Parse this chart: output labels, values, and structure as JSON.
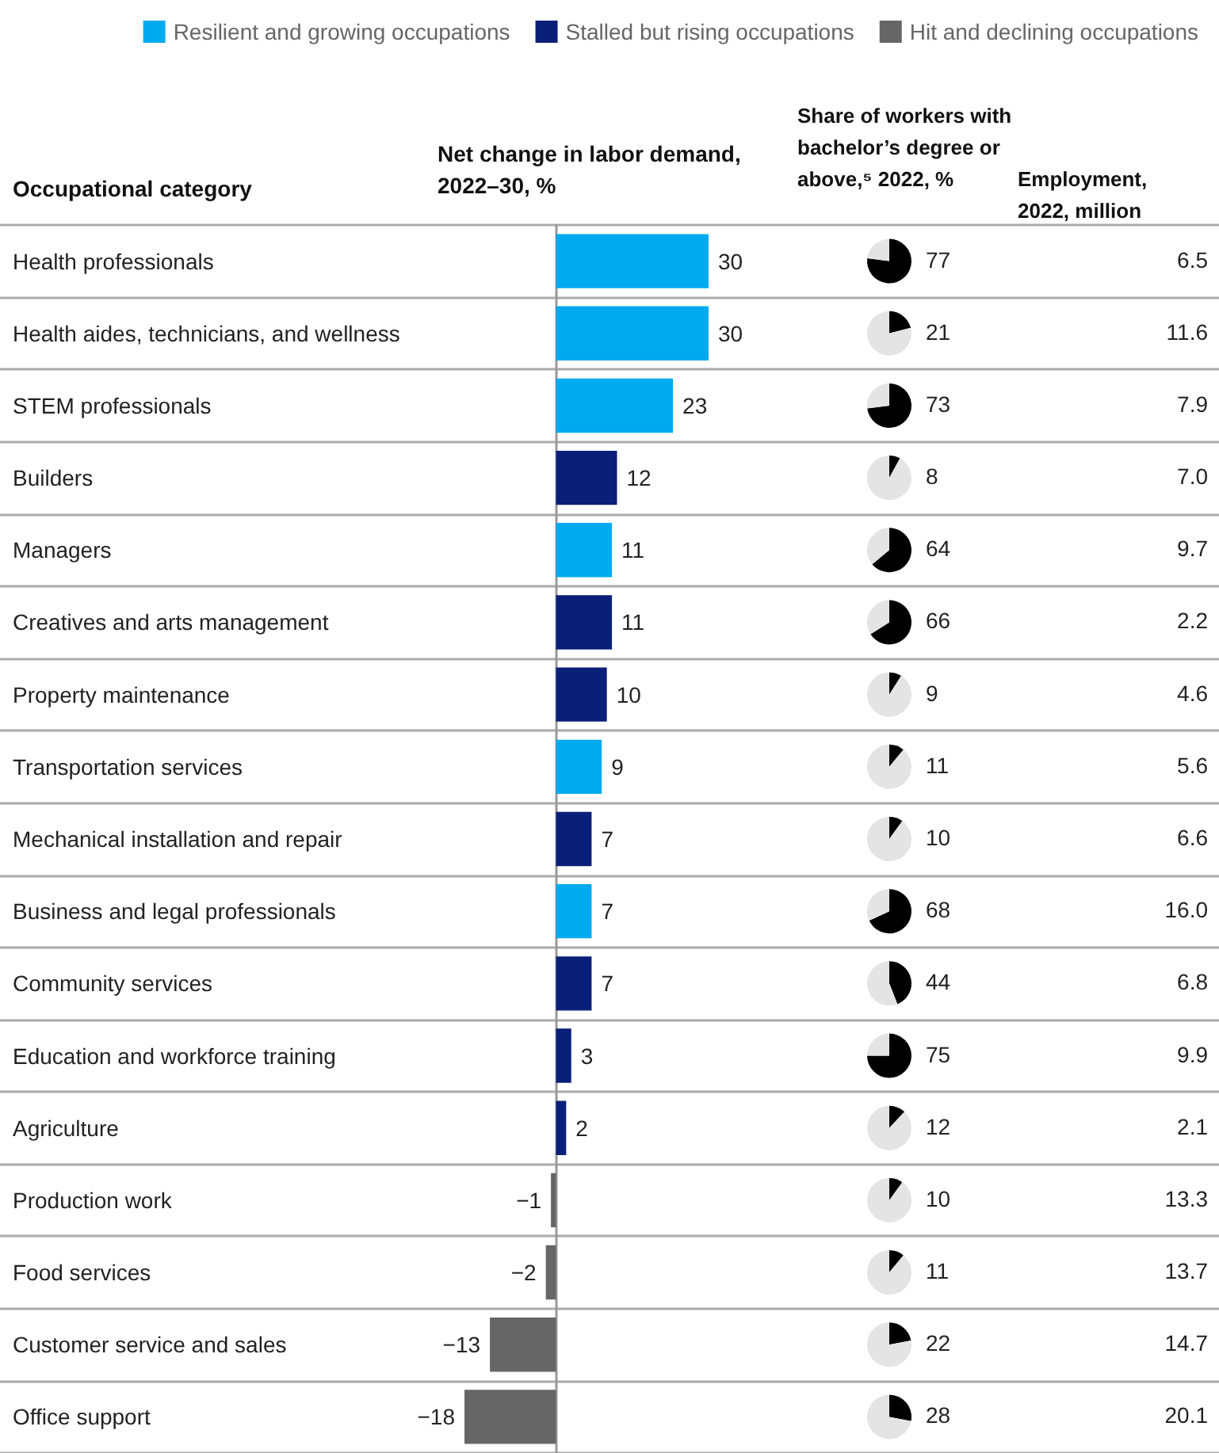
{
  "chart_data": [
    {
      "type": "bar",
      "orientation": "horizontal",
      "title": "Net change in labor demand, 2022–30, %",
      "ylabel": "Occupational category",
      "categories": [
        "Health professionals",
        "Health aides, technicians, and wellness",
        "STEM professionals",
        "Builders",
        "Managers",
        "Creatives and arts management",
        "Property maintenance",
        "Transportation services",
        "Mechanical installation and repair",
        "Business and legal professionals",
        "Community services",
        "Education and workforce training",
        "Agriculture",
        "Production work",
        "Food services",
        "Customer service and sales",
        "Office support"
      ],
      "series": [
        {
          "name": "Resilient and growing occupations",
          "color": "#00aaf0",
          "values": [
            30,
            30,
            23,
            null,
            11,
            null,
            null,
            9,
            null,
            7,
            null,
            null,
            null,
            null,
            null,
            null,
            null
          ]
        },
        {
          "name": "Stalled but rising occupations",
          "color": "#0a1f78",
          "values": [
            null,
            null,
            null,
            12,
            null,
            11,
            10,
            null,
            7,
            null,
            7,
            3,
            2,
            null,
            null,
            null,
            null
          ]
        },
        {
          "name": "Hit and declining occupations",
          "color": "#666666",
          "values": [
            null,
            null,
            null,
            null,
            null,
            null,
            null,
            null,
            null,
            null,
            null,
            null,
            null,
            -1,
            -2,
            -13,
            -18
          ]
        }
      ],
      "xlim": [
        -18,
        30
      ],
      "tick_labels": "y",
      "data_labels": true,
      "legend": "top right",
      "grid": "y"
    },
    {
      "type": "other",
      "title": "Share of workers with bachelor’s degree or above,⁵ 2022, %",
      "values": [
        77,
        21,
        73,
        8,
        64,
        66,
        9,
        11,
        10,
        68,
        44,
        75,
        12,
        10,
        11,
        22,
        28
      ],
      "color": "#000000",
      "data_labels": true
    },
    {
      "type": "other",
      "title": "Employment, 2022, million",
      "values": [
        6.5,
        11.6,
        7.9,
        7.0,
        9.7,
        2.2,
        4.6,
        5.6,
        6.6,
        16.0,
        6.8,
        9.9,
        2.1,
        13.3,
        13.7,
        14.7,
        20.1
      ],
      "value_labels": [
        "6.5",
        "11.6",
        "7.9",
        "7.0",
        "9.7",
        "2.2",
        "4.6",
        "5.6",
        "6.6",
        "16.0",
        "6.8",
        "9.9",
        "2.1",
        "13.3",
        "13.7",
        "14.7",
        "20.1"
      ]
    }
  ]
}
